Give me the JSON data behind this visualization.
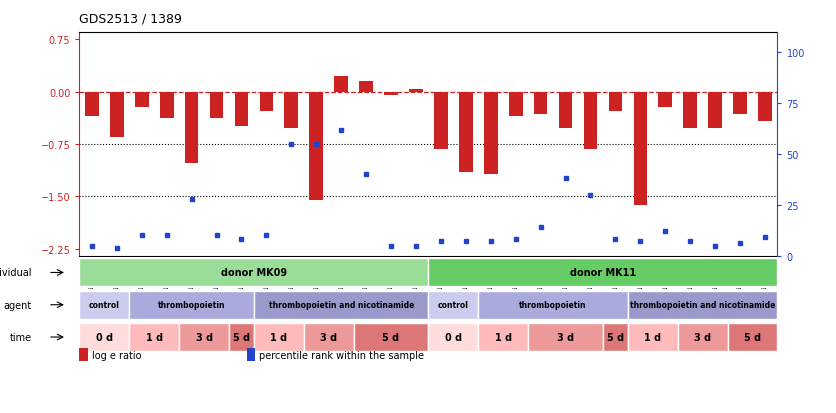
{
  "title": "GDS2513 / 1389",
  "samples": [
    "GSM112271",
    "GSM112272",
    "GSM112273",
    "GSM112274",
    "GSM112275",
    "GSM112276",
    "GSM112277",
    "GSM112278",
    "GSM112279",
    "GSM112280",
    "GSM112281",
    "GSM112282",
    "GSM112283",
    "GSM112284",
    "GSM112285",
    "GSM112286",
    "GSM112287",
    "GSM112288",
    "GSM112289",
    "GSM112290",
    "GSM112291",
    "GSM112292",
    "GSM112293",
    "GSM112294",
    "GSM112295",
    "GSM112296",
    "GSM112297",
    "GSM112298"
  ],
  "log_ratio": [
    -0.35,
    -0.65,
    -0.22,
    -0.38,
    -1.02,
    -0.38,
    -0.5,
    -0.28,
    -0.52,
    -1.55,
    0.22,
    0.15,
    -0.05,
    0.03,
    -0.82,
    -1.15,
    -1.18,
    -0.35,
    -0.32,
    -0.52,
    -0.82,
    -0.28,
    -1.62,
    -0.22,
    -0.52,
    -0.52,
    -0.32,
    -0.42
  ],
  "percentile": [
    5,
    4,
    10,
    10,
    28,
    10,
    8,
    10,
    55,
    55,
    62,
    40,
    5,
    5,
    7,
    7,
    7,
    8,
    14,
    38,
    30,
    8,
    7,
    12,
    7,
    5,
    6,
    9
  ],
  "ylim_left": [
    -2.35,
    0.85
  ],
  "ylim_right": [
    0,
    110
  ],
  "yticks_left": [
    0.75,
    0.0,
    -0.75,
    -1.5,
    -2.25
  ],
  "yticks_right": [
    100,
    75,
    50,
    25,
    0
  ],
  "hline_red": 0.0,
  "hlines_black": [
    -0.75,
    -1.5
  ],
  "bar_color": "#cc2222",
  "dot_color": "#2244cc",
  "individual_row": [
    {
      "label": "donor MK09",
      "start": 0,
      "end": 14,
      "color": "#99dd99"
    },
    {
      "label": "donor MK11",
      "start": 14,
      "end": 28,
      "color": "#66cc66"
    }
  ],
  "agent_row": [
    {
      "label": "control",
      "start": 0,
      "end": 2,
      "color": "#ccccee"
    },
    {
      "label": "thrombopoietin",
      "start": 2,
      "end": 7,
      "color": "#aaaadd"
    },
    {
      "label": "thrombopoietin and nicotinamide",
      "start": 7,
      "end": 14,
      "color": "#9999cc"
    },
    {
      "label": "control",
      "start": 14,
      "end": 16,
      "color": "#ccccee"
    },
    {
      "label": "thrombopoietin",
      "start": 16,
      "end": 22,
      "color": "#aaaadd"
    },
    {
      "label": "thrombopoietin and nicotinamide",
      "start": 22,
      "end": 28,
      "color": "#9999cc"
    }
  ],
  "time_row": [
    {
      "label": "0 d",
      "start": 0,
      "end": 2,
      "color": "#ffdddd"
    },
    {
      "label": "1 d",
      "start": 2,
      "end": 4,
      "color": "#ffbbbb"
    },
    {
      "label": "3 d",
      "start": 4,
      "end": 6,
      "color": "#ee9999"
    },
    {
      "label": "5 d",
      "start": 6,
      "end": 7,
      "color": "#dd7777"
    },
    {
      "label": "1 d",
      "start": 7,
      "end": 9,
      "color": "#ffbbbb"
    },
    {
      "label": "3 d",
      "start": 9,
      "end": 11,
      "color": "#ee9999"
    },
    {
      "label": "5 d",
      "start": 11,
      "end": 14,
      "color": "#dd7777"
    },
    {
      "label": "0 d",
      "start": 14,
      "end": 16,
      "color": "#ffdddd"
    },
    {
      "label": "1 d",
      "start": 16,
      "end": 18,
      "color": "#ffbbbb"
    },
    {
      "label": "3 d",
      "start": 18,
      "end": 21,
      "color": "#ee9999"
    },
    {
      "label": "5 d",
      "start": 21,
      "end": 22,
      "color": "#dd7777"
    },
    {
      "label": "1 d",
      "start": 22,
      "end": 24,
      "color": "#ffbbbb"
    },
    {
      "label": "3 d",
      "start": 24,
      "end": 26,
      "color": "#ee9999"
    },
    {
      "label": "5 d",
      "start": 26,
      "end": 28,
      "color": "#dd7777"
    }
  ],
  "legend_items": [
    {
      "label": "log e ratio",
      "color": "#cc2222"
    },
    {
      "label": "percentile rank within the sample",
      "color": "#2244cc"
    }
  ],
  "bg_color": "#ffffff",
  "fig_width": 8.36,
  "fig_height": 4.14,
  "dpi": 100
}
